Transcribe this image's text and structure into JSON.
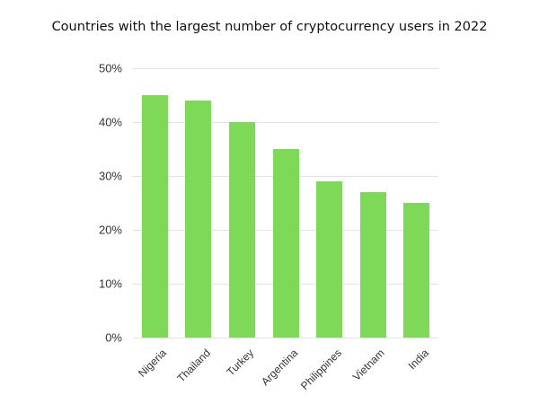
{
  "chart_data": {
    "type": "bar",
    "title": "Countries with the largest number of cryptocurrency users in 2022",
    "categories": [
      "Nigeria",
      "Thailand",
      "Turkey",
      "Argentina",
      "Philippines",
      "Vietnam",
      "India"
    ],
    "values": [
      45,
      44,
      40,
      35,
      29,
      27,
      25
    ],
    "xlabel": "",
    "ylabel": "",
    "ylim": [
      0,
      50
    ],
    "yticks": [
      "0%",
      "10%",
      "20%",
      "30%",
      "40%",
      "50%"
    ],
    "grid": true,
    "legend": null,
    "bar_color": "#7dd957"
  }
}
